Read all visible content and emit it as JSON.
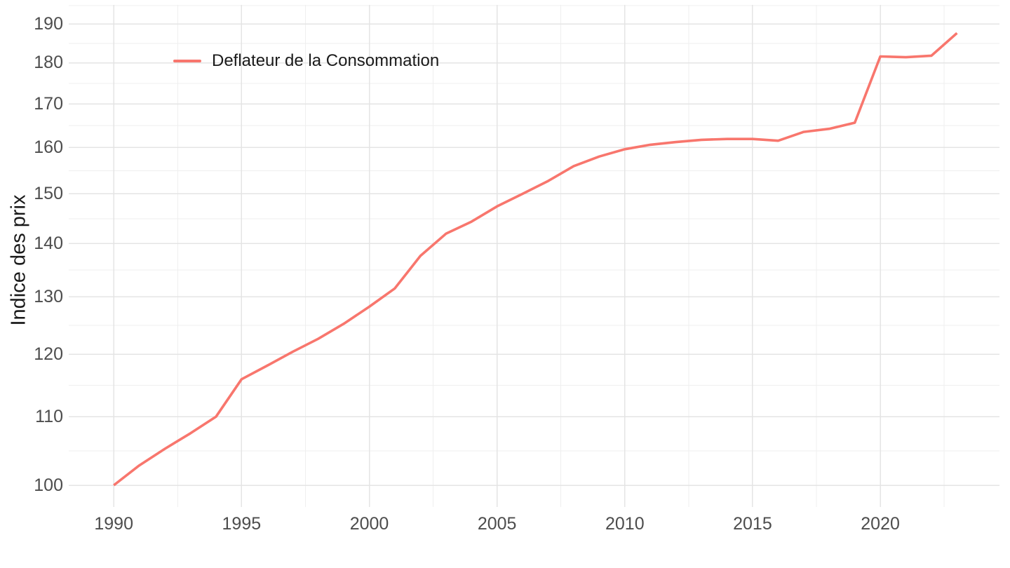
{
  "page": {
    "background": "#ffffff"
  },
  "chart_data": {
    "type": "line",
    "title": "",
    "xlabel": "",
    "ylabel": "Indice des prix",
    "y_scale": "log10",
    "grid": {
      "major": true,
      "minor": true
    },
    "x_range_displayed": [
      1988.2,
      2024.7
    ],
    "y_range_displayed": [
      96.9,
      193.7
    ],
    "x_ticks": [
      1990,
      1995,
      2000,
      2005,
      2010,
      2015,
      2020
    ],
    "x_minor_breaks": [
      1992.5,
      1997.5,
      2002.5,
      2007.5,
      2012.5,
      2017.5,
      2022.5
    ],
    "y_ticks": [
      100,
      110,
      120,
      130,
      140,
      150,
      160,
      170,
      180,
      190
    ],
    "legend": {
      "position": "inside-top-left",
      "entries": [
        "Deflateur de la Consommation"
      ]
    },
    "categories": [
      1990,
      1991,
      1992,
      1993,
      1994,
      1995,
      1996,
      1997,
      1998,
      1999,
      2000,
      2001,
      2002,
      2003,
      2004,
      2005,
      2006,
      2007,
      2008,
      2009,
      2010,
      2011,
      2012,
      2013,
      2014,
      2015,
      2016,
      2017,
      2018,
      2019,
      2020,
      2021,
      2022,
      2023
    ],
    "series": [
      {
        "name": "Deflateur de la Consommation",
        "color": "#F8766D",
        "values": [
          100.0,
          102.8,
          105.2,
          107.5,
          110.0,
          115.9,
          118.1,
          120.4,
          122.6,
          125.2,
          128.2,
          131.5,
          137.6,
          141.9,
          144.3,
          147.4,
          150.0,
          152.7,
          155.9,
          158.0,
          159.6,
          160.6,
          161.2,
          161.7,
          161.9,
          161.9,
          161.5,
          163.5,
          164.2,
          165.6,
          181.6,
          181.4,
          181.8,
          187.6
        ]
      }
    ],
    "colors": {
      "grid_major": "#E4E4E4",
      "grid_minor": "#EFEFEF",
      "tick_text": "#4d4d4d",
      "axis_title_text": "#1a1a1a",
      "legend_text": "#1a1a1a"
    }
  }
}
